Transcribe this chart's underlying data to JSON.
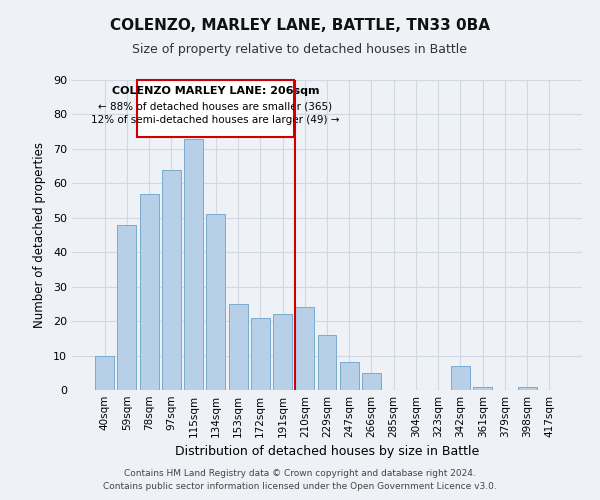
{
  "title": "COLENZO, MARLEY LANE, BATTLE, TN33 0BA",
  "subtitle": "Size of property relative to detached houses in Battle",
  "xlabel": "Distribution of detached houses by size in Battle",
  "ylabel": "Number of detached properties",
  "bar_labels": [
    "40sqm",
    "59sqm",
    "78sqm",
    "97sqm",
    "115sqm",
    "134sqm",
    "153sqm",
    "172sqm",
    "191sqm",
    "210sqm",
    "229sqm",
    "247sqm",
    "266sqm",
    "285sqm",
    "304sqm",
    "323sqm",
    "342sqm",
    "361sqm",
    "379sqm",
    "398sqm",
    "417sqm"
  ],
  "bar_values": [
    10,
    48,
    57,
    64,
    73,
    51,
    25,
    21,
    22,
    24,
    16,
    8,
    5,
    0,
    0,
    0,
    7,
    1,
    0,
    1,
    0
  ],
  "bar_color": "#b8cfe8",
  "bar_edge_color": "#7aaad0",
  "grid_color": "#d0d8e4",
  "ylim": [
    0,
    90
  ],
  "yticks": [
    0,
    10,
    20,
    30,
    40,
    50,
    60,
    70,
    80,
    90
  ],
  "vline_color": "#cc0000",
  "annotation_title": "COLENZO MARLEY LANE: 206sqm",
  "annotation_line1": "← 88% of detached houses are smaller (365)",
  "annotation_line2": "12% of semi-detached houses are larger (49) →",
  "annotation_box_color": "#ffffff",
  "annotation_box_edge": "#cc0000",
  "footer_line1": "Contains HM Land Registry data © Crown copyright and database right 2024.",
  "footer_line2": "Contains public sector information licensed under the Open Government Licence v3.0.",
  "background_color": "#eef2f7"
}
